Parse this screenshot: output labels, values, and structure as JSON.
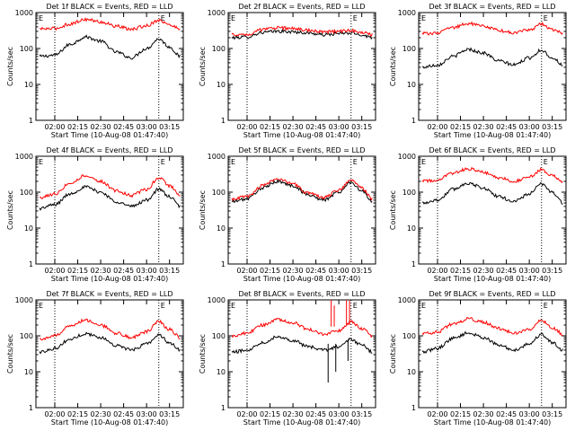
{
  "figure": {
    "xlabel": "Start Time (10-Aug-08 01:47:40)",
    "ylabel": "Counts/sec",
    "x_tick_labels": [
      "02:00",
      "02:15",
      "02:30",
      "02:45",
      "03:00",
      "03:15"
    ],
    "y_tick_labels": [
      "1",
      "10",
      "100",
      "1000"
    ],
    "markers": [
      "E",
      "E"
    ],
    "colors": {
      "events": "#000000",
      "lld": "#ff0000",
      "axes": "#000000",
      "background": "#ffffff"
    }
  },
  "chart_data": [
    {
      "type": "line",
      "title": "Det 1f BLACK = Events, RED = LLD",
      "xlabel": "Start Time (10-Aug-08 01:47:40)",
      "ylabel": "Counts/sec",
      "x_range": [
        "01:47:40",
        "03:24:00"
      ],
      "ylim": [
        1,
        1000
      ],
      "y_scale": "log",
      "vlines": [
        "02:00",
        "03:08"
      ],
      "x": [
        "01:50",
        "02:00",
        "02:10",
        "02:20",
        "02:30",
        "02:40",
        "02:50",
        "03:00",
        "03:08",
        "03:15",
        "03:22"
      ],
      "series": [
        {
          "name": "Events",
          "color": "#000000",
          "values": [
            60,
            65,
            130,
            210,
            160,
            80,
            55,
            100,
            185,
            110,
            60
          ]
        },
        {
          "name": "LLD",
          "color": "#ff0000",
          "values": [
            350,
            360,
            480,
            650,
            550,
            420,
            340,
            430,
            620,
            450,
            360
          ]
        }
      ]
    },
    {
      "type": "line",
      "title": "Det 2f BLACK = Events, RED = LLD",
      "xlabel": "Start Time (10-Aug-08 01:47:40)",
      "ylabel": "Counts/sec",
      "x_range": [
        "01:47:40",
        "03:24:00"
      ],
      "ylim": [
        1,
        1000
      ],
      "y_scale": "log",
      "vlines": [
        "02:00",
        "03:08"
      ],
      "x": [
        "01:50",
        "02:00",
        "02:10",
        "02:20",
        "02:30",
        "02:40",
        "02:50",
        "03:00",
        "03:08",
        "03:15",
        "03:22"
      ],
      "series": [
        {
          "name": "Events",
          "color": "#000000",
          "values": [
            200,
            210,
            280,
            300,
            290,
            270,
            240,
            260,
            270,
            240,
            200
          ]
        },
        {
          "name": "LLD",
          "color": "#ff0000",
          "values": [
            240,
            250,
            330,
            380,
            360,
            320,
            290,
            300,
            320,
            280,
            240
          ]
        }
      ]
    },
    {
      "type": "line",
      "title": "Det 3f BLACK = Events, RED = LLD",
      "xlabel": "Start Time (10-Aug-08 01:47:40)",
      "ylabel": "Counts/sec",
      "x_range": [
        "01:47:40",
        "03:24:00"
      ],
      "ylim": [
        1,
        1000
      ],
      "y_scale": "log",
      "vlines": [
        "02:00",
        "03:08"
      ],
      "x": [
        "01:50",
        "02:00",
        "02:10",
        "02:20",
        "02:30",
        "02:40",
        "02:50",
        "03:00",
        "03:08",
        "03:15",
        "03:22"
      ],
      "series": [
        {
          "name": "Events",
          "color": "#000000",
          "values": [
            30,
            35,
            60,
            95,
            75,
            45,
            35,
            55,
            90,
            55,
            35
          ]
        },
        {
          "name": "LLD",
          "color": "#ff0000",
          "values": [
            260,
            270,
            380,
            500,
            420,
            320,
            270,
            330,
            480,
            340,
            270
          ]
        }
      ]
    },
    {
      "type": "line",
      "title": "Det 4f BLACK = Events, RED = LLD",
      "xlabel": "Start Time (10-Aug-08 01:47:40)",
      "ylabel": "Counts/sec",
      "x_range": [
        "01:47:40",
        "03:24:00"
      ],
      "ylim": [
        1,
        1000
      ],
      "y_scale": "log",
      "vlines": [
        "02:00",
        "03:08"
      ],
      "x": [
        "01:50",
        "02:00",
        "02:10",
        "02:20",
        "02:30",
        "02:40",
        "02:50",
        "03:00",
        "03:08",
        "03:15",
        "03:22"
      ],
      "series": [
        {
          "name": "Events",
          "color": "#000000",
          "values": [
            35,
            45,
            90,
            140,
            100,
            55,
            40,
            60,
            120,
            75,
            40
          ]
        },
        {
          "name": "LLD",
          "color": "#ff0000",
          "values": [
            70,
            90,
            180,
            290,
            200,
            110,
            80,
            120,
            250,
            150,
            85
          ]
        }
      ]
    },
    {
      "type": "line",
      "title": "Det 5f BLACK = Events, RED = LLD",
      "xlabel": "Start Time (10-Aug-08 01:47:40)",
      "ylabel": "Counts/sec",
      "x_range": [
        "01:47:40",
        "03:24:00"
      ],
      "ylim": [
        1,
        1000
      ],
      "y_scale": "log",
      "vlines": [
        "02:00",
        "03:08"
      ],
      "x": [
        "01:50",
        "02:00",
        "02:10",
        "02:20",
        "02:30",
        "02:40",
        "02:50",
        "03:00",
        "03:08",
        "03:15",
        "03:22"
      ],
      "series": [
        {
          "name": "Events",
          "color": "#000000",
          "values": [
            55,
            65,
            130,
            200,
            150,
            85,
            60,
            100,
            190,
            110,
            55
          ]
        },
        {
          "name": "LLD",
          "color": "#ff0000",
          "values": [
            65,
            75,
            150,
            240,
            170,
            95,
            70,
            115,
            230,
            130,
            65
          ]
        }
      ]
    },
    {
      "type": "line",
      "title": "Det 6f BLACK = Events, RED = LLD",
      "xlabel": "Start Time (10-Aug-08 01:47:40)",
      "ylabel": "Counts/sec",
      "x_range": [
        "01:47:40",
        "03:24:00"
      ],
      "ylim": [
        1,
        1000
      ],
      "y_scale": "log",
      "vlines": [
        "02:00",
        "03:08"
      ],
      "x": [
        "01:50",
        "02:00",
        "02:10",
        "02:20",
        "02:30",
        "02:40",
        "02:50",
        "03:00",
        "03:08",
        "03:15",
        "03:22"
      ],
      "series": [
        {
          "name": "Events",
          "color": "#000000",
          "values": [
            50,
            60,
            120,
            180,
            130,
            75,
            55,
            90,
            170,
            100,
            50
          ]
        },
        {
          "name": "LLD",
          "color": "#ff0000",
          "values": [
            200,
            220,
            330,
            450,
            360,
            250,
            200,
            260,
            420,
            280,
            200
          ]
        }
      ]
    },
    {
      "type": "line",
      "title": "Det 7f BLACK = Events, RED = LLD",
      "xlabel": "Start Time (10-Aug-08 01:47:40)",
      "ylabel": "Counts/sec",
      "x_range": [
        "01:47:40",
        "03:24:00"
      ],
      "ylim": [
        1,
        1000
      ],
      "y_scale": "log",
      "vlines": [
        "02:00",
        "03:08"
      ],
      "x": [
        "01:50",
        "02:00",
        "02:10",
        "02:20",
        "02:30",
        "02:40",
        "02:50",
        "03:00",
        "03:08",
        "03:15",
        "03:22"
      ],
      "series": [
        {
          "name": "Events",
          "color": "#000000",
          "values": [
            35,
            45,
            80,
            115,
            90,
            55,
            40,
            60,
            105,
            65,
            40
          ]
        },
        {
          "name": "LLD",
          "color": "#ff0000",
          "values": [
            80,
            100,
            190,
            270,
            200,
            120,
            90,
            130,
            250,
            150,
            90
          ]
        }
      ]
    },
    {
      "type": "line",
      "title": "Det 8f BLACK = Events, RED = LLD",
      "xlabel": "Start Time (10-Aug-08 01:47:40)",
      "ylabel": "Counts/sec",
      "x_range": [
        "01:47:40",
        "03:24:00"
      ],
      "ylim": [
        1,
        1000
      ],
      "y_scale": "log",
      "vlines": [
        "02:00",
        "03:08"
      ],
      "x": [
        "01:50",
        "02:00",
        "02:10",
        "02:20",
        "02:30",
        "02:40",
        "02:50",
        "03:00",
        "03:08",
        "03:15",
        "03:22"
      ],
      "series": [
        {
          "name": "Events",
          "color": "#000000",
          "values": [
            35,
            40,
            65,
            95,
            75,
            50,
            40,
            50,
            80,
            55,
            35
          ]
        },
        {
          "name": "LLD",
          "color": "#ff0000",
          "values": [
            100,
            120,
            200,
            290,
            230,
            150,
            110,
            140,
            250,
            160,
            100
          ]
        }
      ],
      "annotations": "spikes near 02:55-03:08 (LLD up to ~1000, Events down to ~5)"
    },
    {
      "type": "line",
      "title": "Det 9f BLACK = Events, RED = LLD",
      "xlabel": "Start Time (10-Aug-08 01:47:40)",
      "ylabel": "Counts/sec",
      "x_range": [
        "01:47:40",
        "03:24:00"
      ],
      "ylim": [
        1,
        1000
      ],
      "y_scale": "log",
      "vlines": [
        "02:00",
        "03:08"
      ],
      "x": [
        "01:50",
        "02:00",
        "02:10",
        "02:20",
        "02:30",
        "02:40",
        "02:50",
        "03:00",
        "03:08",
        "03:15",
        "03:22"
      ],
      "series": [
        {
          "name": "Events",
          "color": "#000000",
          "values": [
            35,
            45,
            85,
            120,
            90,
            55,
            40,
            60,
            110,
            65,
            40
          ]
        },
        {
          "name": "LLD",
          "color": "#ff0000",
          "values": [
            110,
            130,
            210,
            300,
            240,
            160,
            120,
            150,
            270,
            170,
            110
          ]
        }
      ]
    }
  ]
}
